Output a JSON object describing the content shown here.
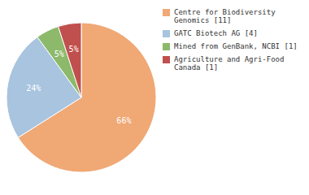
{
  "chart_data": {
    "type": "pie",
    "categories": [
      "Centre for Biodiversity\nGenomics [11]",
      "GATC Biotech AG [4]",
      "Mined from GenBank, NCBI [1]",
      "Agriculture and Agri-Food\nCanada [1]"
    ],
    "values": [
      66,
      24,
      5,
      5
    ],
    "value_labels": [
      "66%",
      "24%",
      "5%",
      "5%"
    ],
    "colors": [
      "#f0a875",
      "#a8c4df",
      "#8db96a",
      "#c0504d"
    ],
    "data_labels": true,
    "legend": "right"
  }
}
